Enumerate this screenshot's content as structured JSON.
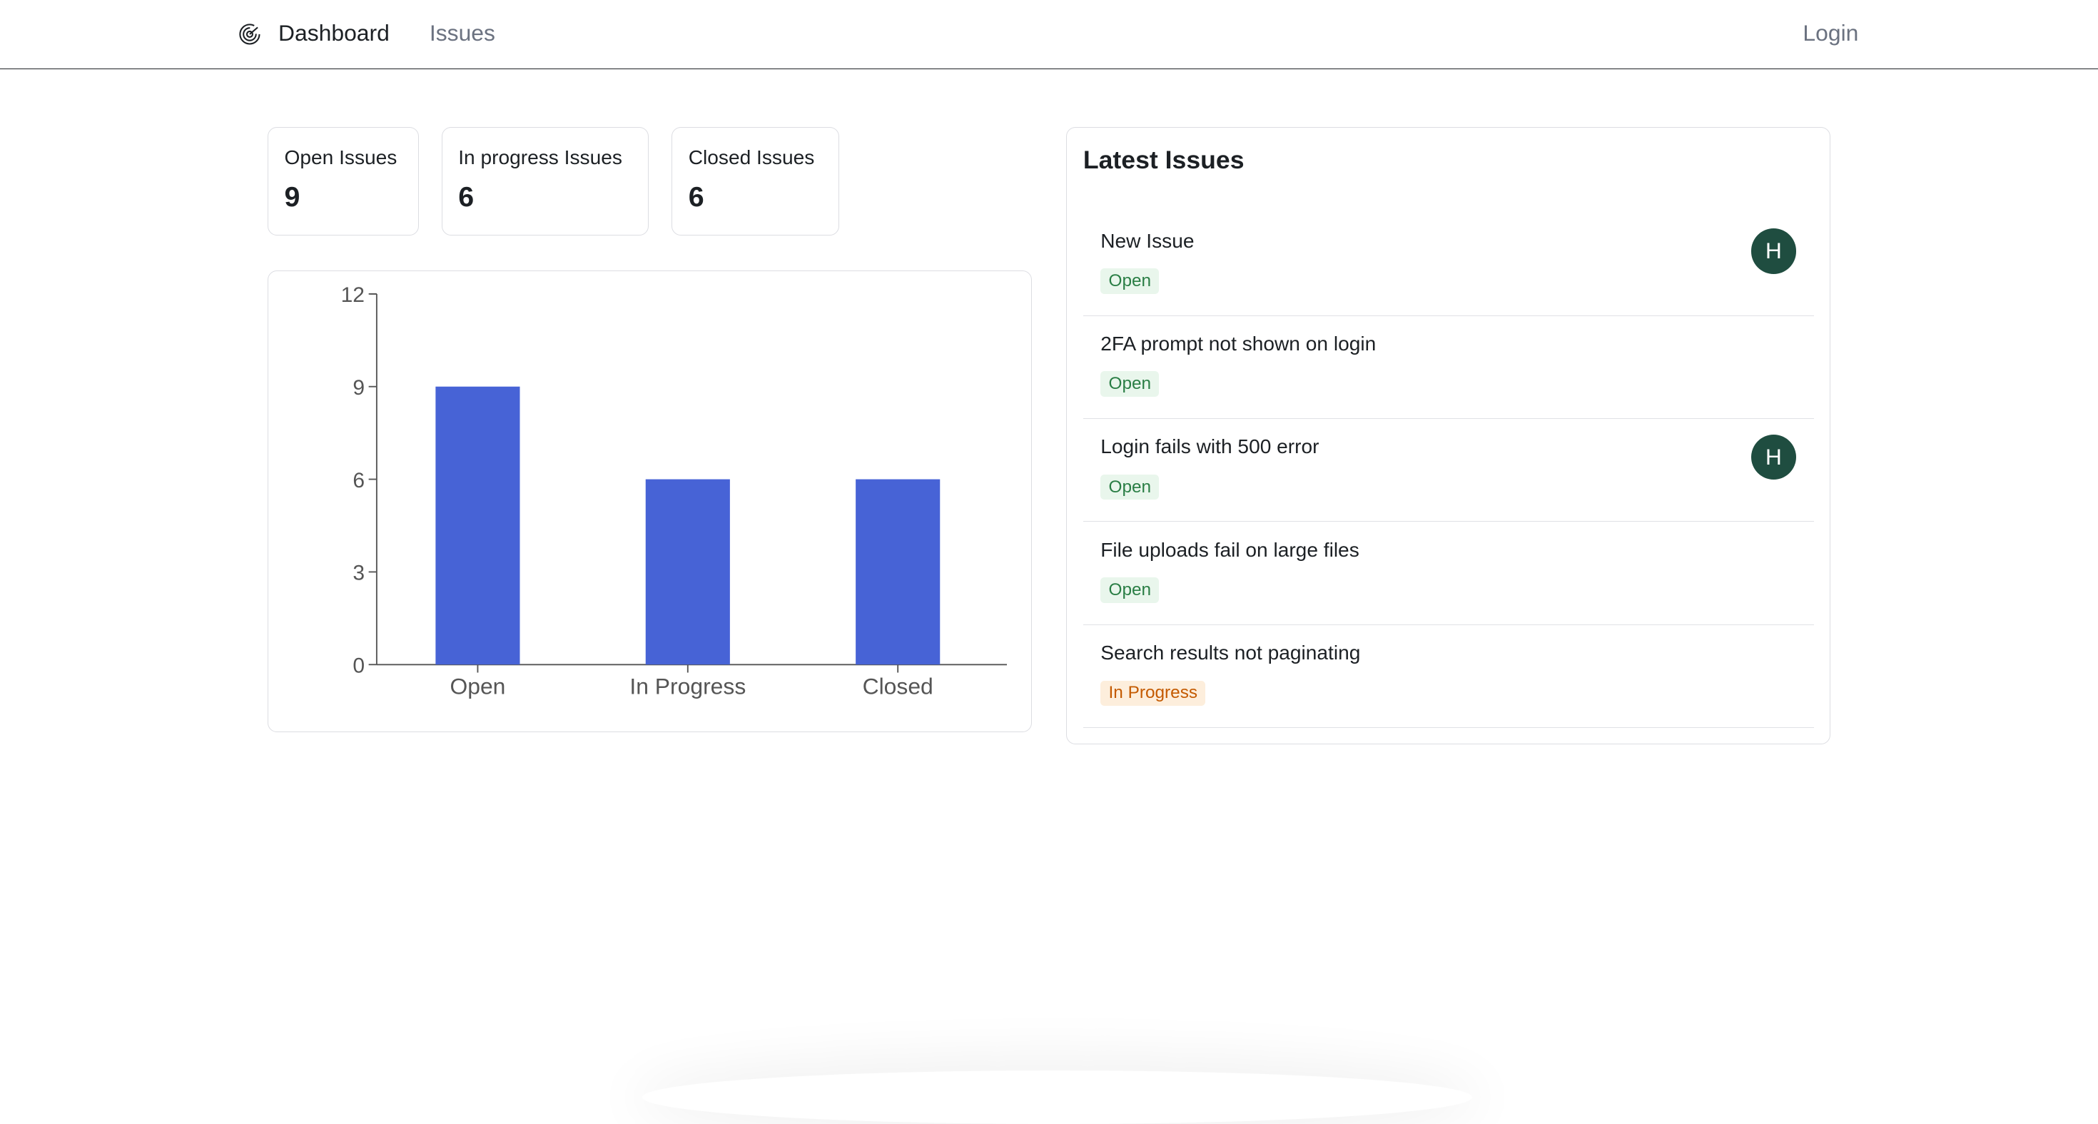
{
  "nav": {
    "logo_icon": "target-logo-icon",
    "dashboard": "Dashboard",
    "issues": "Issues",
    "login": "Login"
  },
  "stats": [
    {
      "label": "Open Issues",
      "value": "9"
    },
    {
      "label": "In progress Issues",
      "value": "6"
    },
    {
      "label": "Closed Issues",
      "value": "6"
    }
  ],
  "chart_data": {
    "type": "bar",
    "categories": [
      "Open",
      "In Progress",
      "Closed"
    ],
    "values": [
      9,
      6,
      6
    ],
    "ylim": [
      0,
      12
    ],
    "yticks": [
      "0",
      "3",
      "6",
      "9",
      "12"
    ],
    "grid": false,
    "color": "#4763d6"
  },
  "latest": {
    "title": "Latest Issues",
    "items": [
      {
        "title": "New Issue",
        "status": "Open",
        "assignee": "H"
      },
      {
        "title": "2FA prompt not shown on login",
        "status": "Open",
        "assignee": ""
      },
      {
        "title": "Login fails with 500 error",
        "status": "Open",
        "assignee": "H"
      },
      {
        "title": "File uploads fail on large files",
        "status": "Open",
        "assignee": ""
      },
      {
        "title": "Search results not paginating",
        "status": "In Progress",
        "assignee": ""
      }
    ]
  },
  "colors": {
    "open_badge": "#2a7e45",
    "progress_badge": "#c45a00",
    "avatar": "#1f4d40"
  }
}
